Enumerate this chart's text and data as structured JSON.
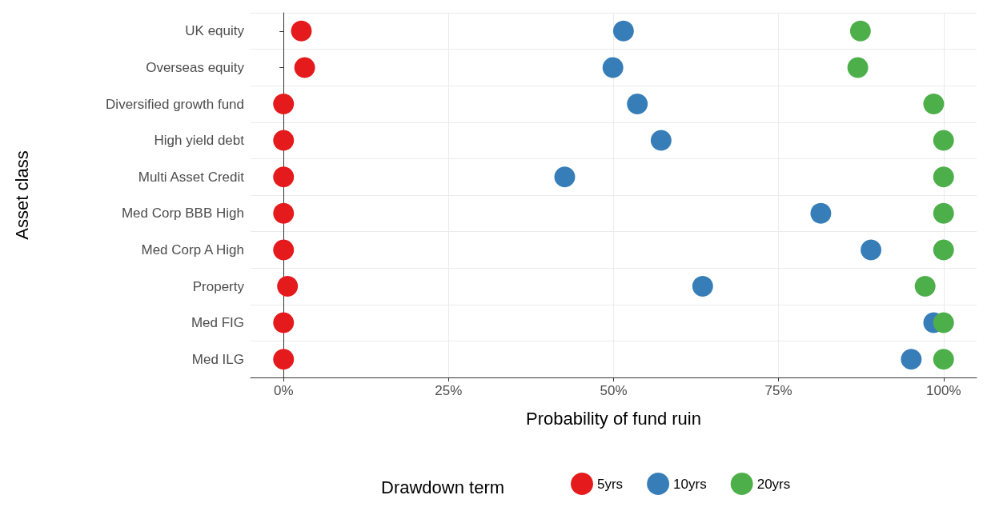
{
  "chart_data": {
    "type": "scatter",
    "orientation": "horizontal",
    "xlabel": "Probability of fund ruin",
    "ylabel": "Asset class",
    "legend_title": "Drawdown term",
    "categories": [
      "UK equity",
      "Overseas equity",
      "Diversified growth fund",
      "High yield debt",
      "Multi Asset Credit",
      "Med Corp BBB High",
      "Med Corp A High",
      "Property",
      "Med FIG",
      "Med ILG"
    ],
    "series": [
      {
        "name": "5yrs",
        "color": "#e41a1c",
        "values": [
          2.7,
          3.2,
          0,
          0,
          0,
          0,
          0,
          0.6,
          0,
          0
        ]
      },
      {
        "name": "10yrs",
        "color": "#377eb8",
        "values": [
          51.5,
          49.9,
          53.6,
          57.2,
          42.6,
          81.4,
          89.0,
          63.5,
          98.5,
          95.1
        ]
      },
      {
        "name": "20yrs",
        "color": "#4daf4a",
        "values": [
          87.4,
          87.0,
          98.5,
          100,
          100,
          100,
          100,
          97.2,
          100,
          100
        ]
      }
    ],
    "xlim": [
      -5,
      105
    ],
    "xticks": [
      {
        "value": 0,
        "label": "0%"
      },
      {
        "value": 25,
        "label": "25%"
      },
      {
        "value": 50,
        "label": "50%"
      },
      {
        "value": 75,
        "label": "75%"
      },
      {
        "value": 100,
        "label": "100%"
      }
    ],
    "grid": true,
    "legend": "bottom",
    "marker": "circle"
  }
}
